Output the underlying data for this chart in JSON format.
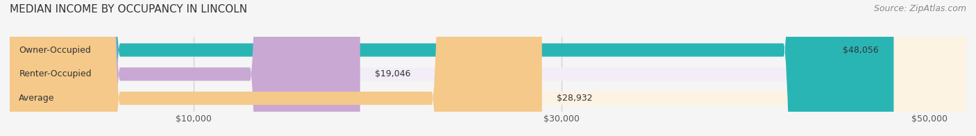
{
  "title": "MEDIAN INCOME BY OCCUPANCY IN LINCOLN",
  "source": "Source: ZipAtlas.com",
  "categories": [
    "Owner-Occupied",
    "Renter-Occupied",
    "Average"
  ],
  "values": [
    48056,
    19046,
    28932
  ],
  "labels": [
    "$48,056",
    "$19,046",
    "$28,932"
  ],
  "bar_colors": [
    "#2ab5b5",
    "#c9a8d4",
    "#f5c98a"
  ],
  "bar_bg_colors": [
    "#e8f6f6",
    "#f2edf6",
    "#fdf3e3"
  ],
  "xlim": [
    0,
    52000
  ],
  "xticks": [
    10000,
    30000,
    50000
  ],
  "xtick_labels": [
    "$10,000",
    "$30,000",
    "$50,000"
  ],
  "title_fontsize": 11,
  "source_fontsize": 9,
  "label_fontsize": 9,
  "bar_height": 0.55,
  "background_color": "#f5f5f5"
}
